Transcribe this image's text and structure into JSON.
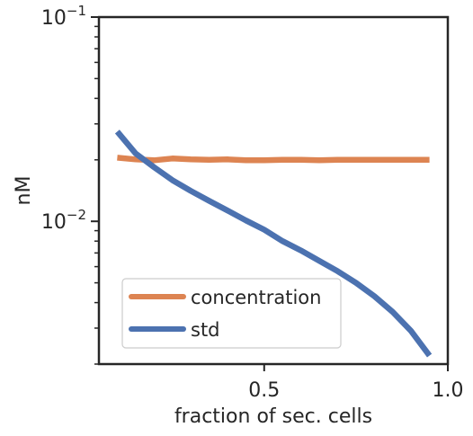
{
  "chart_data": {
    "type": "line",
    "title": "",
    "xlabel": "fraction of sec. cells",
    "ylabel": "nM",
    "xlim": [
      0.05,
      1.0
    ],
    "ylim": [
      0.002,
      0.1
    ],
    "yscale": "log",
    "grid": false,
    "legend_position": "lower-left",
    "x_ticks": [
      {
        "value": 0.5,
        "label": "0.5"
      },
      {
        "value": 1.0,
        "label": "1.0"
      }
    ],
    "y_ticks": [
      {
        "value": 0.01,
        "base": "10",
        "exp": "−2"
      },
      {
        "value": 0.1,
        "base": "10",
        "exp": "−1"
      }
    ],
    "series": [
      {
        "name": "concentration",
        "color": "#dd8452",
        "x": [
          0.1,
          0.15,
          0.2,
          0.25,
          0.3,
          0.35,
          0.4,
          0.45,
          0.5,
          0.55,
          0.6,
          0.65,
          0.7,
          0.75,
          0.8,
          0.85,
          0.9,
          0.95
        ],
        "y": [
          0.0205,
          0.0201,
          0.0199,
          0.0203,
          0.0201,
          0.02,
          0.0201,
          0.0199,
          0.0199,
          0.02,
          0.02,
          0.0199,
          0.02,
          0.02,
          0.02,
          0.02,
          0.02,
          0.02
        ]
      },
      {
        "name": "std",
        "color": "#4c72b0",
        "x": [
          0.1,
          0.15,
          0.2,
          0.25,
          0.3,
          0.35,
          0.4,
          0.45,
          0.5,
          0.55,
          0.6,
          0.65,
          0.7,
          0.75,
          0.8,
          0.85,
          0.9,
          0.95
        ],
        "y": [
          0.0275,
          0.0215,
          0.0184,
          0.0159,
          0.0141,
          0.0126,
          0.0113,
          0.0101,
          0.0091,
          0.008,
          0.0072,
          0.0064,
          0.0057,
          0.005,
          0.0043,
          0.0036,
          0.0029,
          0.0022
        ]
      }
    ]
  }
}
